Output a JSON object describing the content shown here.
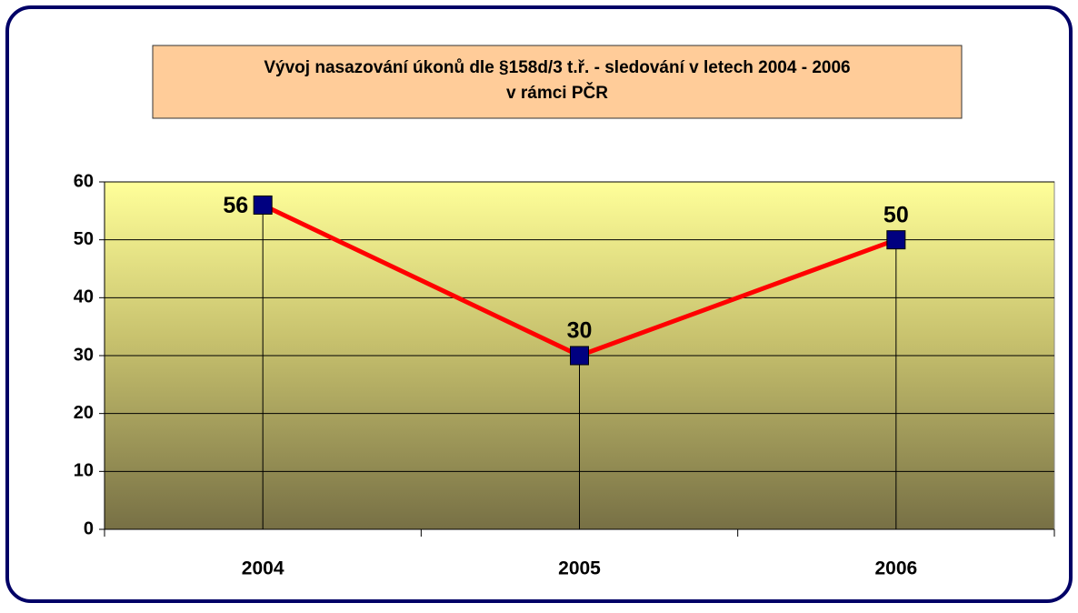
{
  "chart_data": {
    "type": "line",
    "title": [
      "Vývoj nasazování úkonů dle §158d/3 t.ř. - sledování  v letech 2004 - 2006",
      "v rámci PČR"
    ],
    "categories": [
      "2004",
      "2005",
      "2006"
    ],
    "series": [
      {
        "name": "sledování",
        "color": "#ff0000",
        "marker_color": "#000080",
        "values": [
          56,
          30,
          50
        ]
      }
    ],
    "ylim": [
      0,
      60
    ],
    "yticks": [
      0,
      10,
      20,
      30,
      40,
      50,
      60
    ],
    "grid": true,
    "drop_lines": true,
    "legend": false
  }
}
